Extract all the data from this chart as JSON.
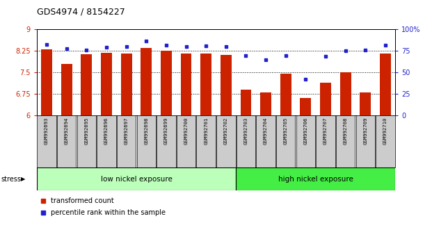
{
  "title": "GDS4974 / 8154227",
  "samples": [
    "GSM992693",
    "GSM992694",
    "GSM992695",
    "GSM992696",
    "GSM992697",
    "GSM992698",
    "GSM992699",
    "GSM992700",
    "GSM992701",
    "GSM992702",
    "GSM992703",
    "GSM992704",
    "GSM992705",
    "GSM992706",
    "GSM992707",
    "GSM992708",
    "GSM992709",
    "GSM992710"
  ],
  "bar_values": [
    8.3,
    7.8,
    8.13,
    8.18,
    8.17,
    8.35,
    8.25,
    8.17,
    8.17,
    8.12,
    6.9,
    6.82,
    7.45,
    6.62,
    7.15,
    7.5,
    6.82,
    8.17
  ],
  "dot_values": [
    83,
    78,
    76,
    79,
    80,
    87,
    82,
    80,
    81,
    80,
    70,
    65,
    70,
    42,
    69,
    75,
    76,
    82
  ],
  "bar_color": "#cc2200",
  "dot_color": "#2222cc",
  "ylim_left": [
    6.0,
    9.0
  ],
  "ylim_right": [
    0,
    100
  ],
  "yticks_left": [
    6.0,
    6.75,
    7.5,
    8.25,
    9.0
  ],
  "yticks_right": [
    0,
    25,
    50,
    75,
    100
  ],
  "ytick_labels_left": [
    "6",
    "6.75",
    "7.5",
    "8.25",
    "9"
  ],
  "ytick_labels_right": [
    "0",
    "25",
    "50",
    "75",
    "100%"
  ],
  "group1_label": "low nickel exposure",
  "group2_label": "high nickel exposure",
  "group1_count": 10,
  "group2_count": 8,
  "stress_label": "stress",
  "legend_bar_label": "transformed count",
  "legend_dot_label": "percentile rank within the sample",
  "bg_color": "#ffffff",
  "group1_color": "#bbffbb",
  "group2_color": "#44ee44",
  "xlabel_bg_color": "#cccccc",
  "tick_fontsize": 7,
  "bar_width": 0.55
}
